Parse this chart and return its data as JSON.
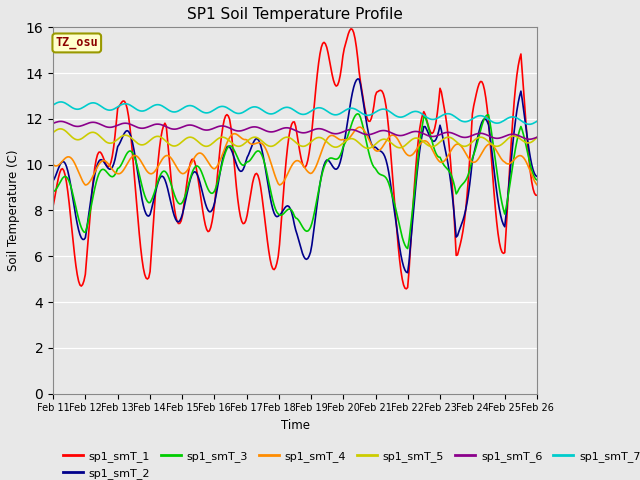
{
  "title": "SP1 Soil Temperature Profile",
  "xlabel": "Time",
  "ylabel": "Soil Temperature (C)",
  "ylim": [
    0,
    16
  ],
  "yticks": [
    0,
    2,
    4,
    6,
    8,
    10,
    12,
    14,
    16
  ],
  "annotation_text": "TZ_osu",
  "annotation_color": "#8B0000",
  "annotation_bg": "#FFFFCC",
  "annotation_edge": "#999900",
  "fig_facecolor": "#E8E8E8",
  "ax_facecolor": "#E8E8E8",
  "legend_entries": [
    "sp1_smT_1",
    "sp1_smT_2",
    "sp1_smT_3",
    "sp1_smT_4",
    "sp1_smT_5",
    "sp1_smT_6",
    "sp1_smT_7"
  ],
  "line_colors": [
    "#FF0000",
    "#00008B",
    "#00CC00",
    "#FF8C00",
    "#CCCC00",
    "#8B008B",
    "#00CCCC"
  ],
  "line_width": 1.2,
  "dates": [
    "Feb 11",
    "Feb 12",
    "Feb 13",
    "Feb 14",
    "Feb 15",
    "Feb 16",
    "Feb 17",
    "Feb 18",
    "Feb 19",
    "Feb 20",
    "Feb 21",
    "Feb 22",
    "Feb 23",
    "Feb 24",
    "Feb 25",
    "Feb 26"
  ],
  "n_days": 15,
  "pts_per_day": 24,
  "figsize": [
    6.4,
    4.8
  ],
  "dpi": 100
}
